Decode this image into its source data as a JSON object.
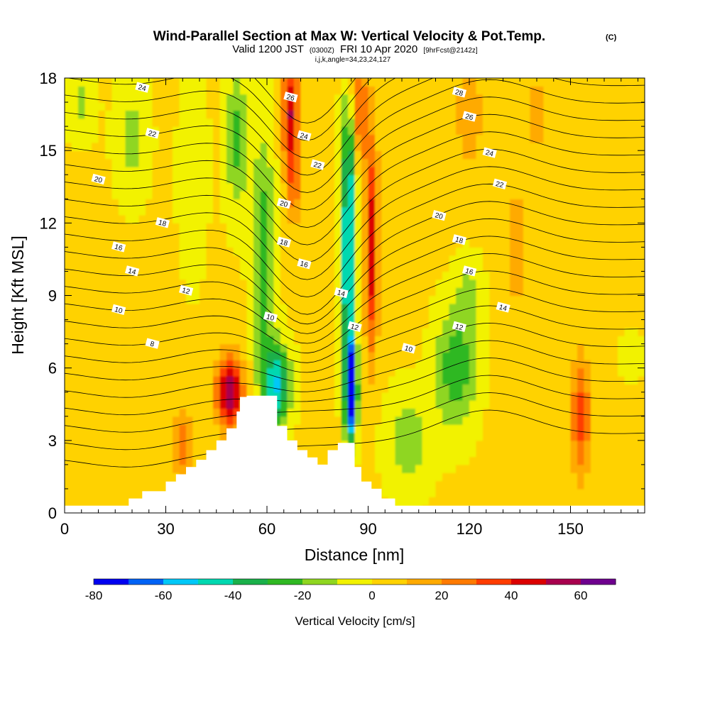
{
  "chart_data": {
    "type": "heatmap",
    "title": "Wind-Parallel Section at Max W: Vertical Velocity & Pot.Temp.",
    "title_mark": "(C)",
    "subtitle_main": "Valid 1200 JST",
    "subtitle_z": "(0300Z)",
    "subtitle_date": "FRI 10 Apr 2020",
    "subtitle_fcst": "[9hrFcst@2142z]",
    "subtitle2": "i,j,k,angle=34,23,24,127",
    "xlabel": "Distance [nm]",
    "ylabel": "Height [Kft MSL]",
    "xlim": [
      0,
      172
    ],
    "ylim": [
      0,
      18
    ],
    "xticks": [
      0,
      30,
      60,
      90,
      120,
      150
    ],
    "yticks": [
      0,
      3,
      6,
      9,
      12,
      15,
      18
    ],
    "colorbar": {
      "label": "Vertical Velocity [cm/s]",
      "min": -80,
      "max": 70,
      "step": 10,
      "tick_labels": [
        -80,
        -60,
        -40,
        -20,
        0,
        20,
        40,
        60
      ],
      "colors": [
        "#0000f0",
        "#0062f5",
        "#00c8f8",
        "#00d8b0",
        "#1ab04a",
        "#2fb822",
        "#8fd620",
        "#f2f200",
        "#ffd200",
        "#ffaa00",
        "#ff7a00",
        "#ff3c00",
        "#dc0000",
        "#a8004e",
        "#6e008e"
      ]
    },
    "terrain": [
      [
        0,
        0.3
      ],
      [
        19,
        0.3
      ],
      [
        19,
        0.6
      ],
      [
        23,
        0.6
      ],
      [
        23,
        0.9
      ],
      [
        30,
        0.9
      ],
      [
        30,
        1.3
      ],
      [
        33,
        1.3
      ],
      [
        33,
        1.6
      ],
      [
        36,
        1.6
      ],
      [
        36,
        1.9
      ],
      [
        39,
        1.9
      ],
      [
        39,
        2.2
      ],
      [
        42,
        2.2
      ],
      [
        42,
        2.6
      ],
      [
        45,
        2.6
      ],
      [
        45,
        3.0
      ],
      [
        48,
        3.0
      ],
      [
        48,
        3.5
      ],
      [
        51,
        3.5
      ],
      [
        51,
        4.2
      ],
      [
        52,
        4.2
      ],
      [
        52,
        4.8
      ],
      [
        54,
        4.8
      ],
      [
        54,
        4.85
      ],
      [
        63,
        4.85
      ],
      [
        63,
        3.6
      ],
      [
        66,
        3.6
      ],
      [
        66,
        3.0
      ],
      [
        69,
        3.0
      ],
      [
        69,
        2.6
      ],
      [
        72,
        2.6
      ],
      [
        72,
        2.3
      ],
      [
        75,
        2.3
      ],
      [
        75,
        2.0
      ],
      [
        78,
        2.0
      ],
      [
        78,
        2.6
      ],
      [
        81,
        2.6
      ],
      [
        81,
        2.9
      ],
      [
        86,
        2.9
      ],
      [
        86,
        1.9
      ],
      [
        88,
        1.9
      ],
      [
        88,
        1.3
      ],
      [
        91,
        1.3
      ],
      [
        91,
        1.0
      ],
      [
        94,
        1.0
      ],
      [
        94,
        0.6
      ],
      [
        98,
        0.6
      ],
      [
        98,
        0.3
      ],
      [
        172,
        0.3
      ]
    ],
    "velocity_features": [
      {
        "x": 85,
        "z": 5.0,
        "sx": 1.6,
        "sz": 1.8,
        "w": -92
      },
      {
        "x": 84,
        "z": 10.0,
        "sx": 2.2,
        "sz": 5.0,
        "w": -55
      },
      {
        "x": 85,
        "z": 15.0,
        "sx": 2.5,
        "sz": 3.0,
        "w": -30
      },
      {
        "x": 63,
        "z": 5.3,
        "sx": 4.0,
        "sz": 1.6,
        "w": -52
      },
      {
        "x": 59,
        "z": 10.5,
        "sx": 3.5,
        "sz": 5.0,
        "w": -30
      },
      {
        "x": 51,
        "z": 15.5,
        "sx": 3.5,
        "sz": 3.0,
        "w": -25
      },
      {
        "x": 49,
        "z": 5.0,
        "sx": 4.0,
        "sz": 1.5,
        "w": 55
      },
      {
        "x": 35,
        "z": 2.8,
        "sx": 3.0,
        "sz": 1.5,
        "w": 25
      },
      {
        "x": 91,
        "z": 11.0,
        "sx": 2.0,
        "sz": 4.5,
        "w": 45
      },
      {
        "x": 87,
        "z": 16.5,
        "sx": 2.5,
        "sz": 2.5,
        "w": 40
      },
      {
        "x": 67,
        "z": 16.5,
        "sx": 2.5,
        "sz": 2.5,
        "w": 48
      },
      {
        "x": 68,
        "z": 13.5,
        "sx": 2.0,
        "sz": 1.5,
        "w": 20
      },
      {
        "x": 116,
        "z": 6.0,
        "sx": 6.0,
        "sz": 2.5,
        "w": -30
      },
      {
        "x": 120,
        "z": 9.0,
        "sx": 4.0,
        "sz": 1.5,
        "w": -15
      },
      {
        "x": 102,
        "z": 3.0,
        "sx": 7.0,
        "sz": 2.0,
        "w": -18
      },
      {
        "x": 153,
        "z": 4.0,
        "sx": 3.0,
        "sz": 2.5,
        "w": 32
      },
      {
        "x": 120,
        "z": 16.5,
        "sx": 4.0,
        "sz": 2.0,
        "w": 18
      },
      {
        "x": 140,
        "z": 16.5,
        "sx": 3.0,
        "sz": 2.0,
        "w": 12
      },
      {
        "x": 20,
        "z": 15.5,
        "sx": 5.0,
        "sz": 2.5,
        "w": -15
      },
      {
        "x": 38,
        "z": 14.0,
        "sx": 4.0,
        "sz": 4.0,
        "w": -12
      },
      {
        "x": 5,
        "z": 17.0,
        "sx": 4.0,
        "sz": 1.5,
        "w": -15
      },
      {
        "x": 134,
        "z": 11.0,
        "sx": 4.0,
        "sz": 5.0,
        "w": 10
      },
      {
        "x": 10,
        "z": 3.0,
        "sx": 10.0,
        "sz": 2.0,
        "w": 5
      },
      {
        "x": 168,
        "z": 6.5,
        "sx": 3.0,
        "sz": 1.0,
        "w": -10
      }
    ],
    "theta_labels": [
      {
        "x": 23,
        "z": 17.6,
        "text": "24"
      },
      {
        "x": 26,
        "z": 15.7,
        "text": "22"
      },
      {
        "x": 10,
        "z": 13.8,
        "text": "20"
      },
      {
        "x": 29,
        "z": 12.0,
        "text": "18"
      },
      {
        "x": 16,
        "z": 11.0,
        "text": "16"
      },
      {
        "x": 20,
        "z": 10.0,
        "text": "14"
      },
      {
        "x": 36,
        "z": 9.2,
        "text": "12"
      },
      {
        "x": 16,
        "z": 8.4,
        "text": "10"
      },
      {
        "x": 26,
        "z": 7.0,
        "text": "8"
      },
      {
        "x": 67,
        "z": 17.2,
        "text": "26"
      },
      {
        "x": 71,
        "z": 15.6,
        "text": "24"
      },
      {
        "x": 75,
        "z": 14.4,
        "text": "22"
      },
      {
        "x": 65,
        "z": 12.8,
        "text": "20"
      },
      {
        "x": 65,
        "z": 11.2,
        "text": "18"
      },
      {
        "x": 71,
        "z": 10.3,
        "text": "16"
      },
      {
        "x": 82,
        "z": 9.1,
        "text": "14"
      },
      {
        "x": 86,
        "z": 7.7,
        "text": "12"
      },
      {
        "x": 61,
        "z": 8.1,
        "text": "10"
      },
      {
        "x": 117,
        "z": 17.4,
        "text": "28"
      },
      {
        "x": 120,
        "z": 16.4,
        "text": "26"
      },
      {
        "x": 126,
        "z": 14.9,
        "text": "24"
      },
      {
        "x": 129,
        "z": 13.6,
        "text": "22"
      },
      {
        "x": 111,
        "z": 12.3,
        "text": "20"
      },
      {
        "x": 117,
        "z": 11.3,
        "text": "18"
      },
      {
        "x": 120,
        "z": 10.0,
        "text": "16"
      },
      {
        "x": 130,
        "z": 8.5,
        "text": "14"
      },
      {
        "x": 117,
        "z": 7.7,
        "text": "12"
      },
      {
        "x": 102,
        "z": 6.8,
        "text": "10"
      }
    ]
  }
}
